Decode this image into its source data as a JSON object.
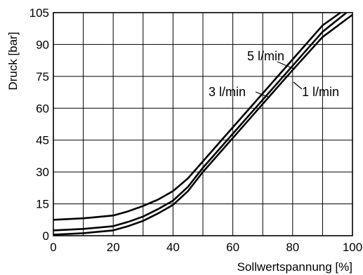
{
  "chart_data": {
    "type": "line",
    "title": "",
    "xlabel": "Sollwertspannung [%]",
    "ylabel": "Druck [bar]",
    "xlim": [
      0,
      100
    ],
    "ylim": [
      0,
      105
    ],
    "xticks": [
      0,
      20,
      40,
      60,
      80,
      100
    ],
    "yticks": [
      0,
      15,
      30,
      45,
      60,
      75,
      90,
      105
    ],
    "grid": true,
    "gridlines_x": [
      0,
      10,
      20,
      30,
      40,
      50,
      60,
      70,
      80,
      90,
      100
    ],
    "gridlines_y": [
      0,
      15,
      30,
      45,
      60,
      75,
      90,
      105
    ],
    "legend": "none",
    "series": [
      {
        "name": "5 l/min",
        "x": [
          0,
          10,
          20,
          25,
          30,
          35,
          40,
          45,
          50,
          60,
          70,
          80,
          90,
          96
        ],
        "y": [
          7.5,
          8.2,
          9.5,
          11.5,
          14,
          17,
          21,
          27,
          35,
          51,
          67,
          83,
          99,
          105
        ]
      },
      {
        "name": "3 l/min",
        "x": [
          0,
          10,
          20,
          25,
          30,
          35,
          40,
          45,
          50,
          60,
          70,
          80,
          90,
          98
        ],
        "y": [
          2.5,
          3.2,
          4.5,
          6.5,
          9,
          12.5,
          16.5,
          23,
          32,
          48,
          64,
          80,
          96,
          105
        ]
      },
      {
        "name": "1 l/min",
        "x": [
          0,
          10,
          20,
          25,
          30,
          35,
          40,
          45,
          50,
          60,
          70,
          80,
          90,
          100
        ],
        "y": [
          0.5,
          1.2,
          2.5,
          4.5,
          7,
          10.5,
          14.5,
          21,
          30,
          46,
          62,
          78,
          93.5,
          104
        ]
      }
    ]
  }
}
